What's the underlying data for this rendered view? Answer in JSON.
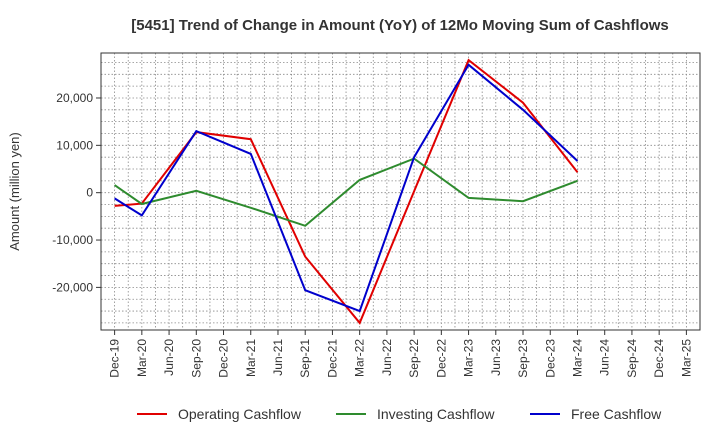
{
  "chart_data": {
    "type": "line",
    "title": "[5451]  Trend of Change in Amount (YoY) of 12Mo Moving Sum of Cashflows",
    "xlabel": "",
    "ylabel": "Amount (million yen)",
    "categories": [
      "Dec-19",
      "Mar-20",
      "Jun-20",
      "Sep-20",
      "Dec-20",
      "Mar-21",
      "Jun-21",
      "Sep-21",
      "Dec-21",
      "Mar-22",
      "Jun-22",
      "Sep-22",
      "Dec-22",
      "Mar-23",
      "Jun-23",
      "Sep-23",
      "Dec-23",
      "Mar-24",
      "Jun-24",
      "Sep-24",
      "Dec-24",
      "Mar-25"
    ],
    "ylim": [
      -29000,
      29500
    ],
    "yticks": [
      -20000,
      -10000,
      0,
      10000,
      20000
    ],
    "ytick_labels": [
      "-20,000",
      "-10,000",
      "0",
      "10,000",
      "20,000"
    ],
    "grid": true,
    "legend_position": "bottom",
    "series": [
      {
        "name": "Operating Cashflow",
        "color": "#e00000",
        "values": [
          -2800,
          -2300,
          null,
          12800,
          null,
          11300,
          null,
          -13500,
          null,
          -27500,
          null,
          300,
          null,
          28000,
          null,
          19000,
          null,
          4300,
          null,
          null,
          null,
          null
        ]
      },
      {
        "name": "Investing Cashflow",
        "color": "#2e8b2e",
        "values": [
          1600,
          -2400,
          null,
          400,
          null,
          -3200,
          null,
          -7000,
          null,
          2700,
          null,
          7200,
          null,
          -1100,
          null,
          -1800,
          null,
          2500,
          null,
          null,
          null,
          null
        ]
      },
      {
        "name": "Free Cashflow",
        "color": "#0000cc",
        "values": [
          -1200,
          -4800,
          null,
          13000,
          null,
          8200,
          null,
          -20600,
          null,
          -25000,
          null,
          7500,
          null,
          27000,
          null,
          17500,
          null,
          6700,
          null,
          null,
          null,
          null
        ]
      }
    ]
  }
}
